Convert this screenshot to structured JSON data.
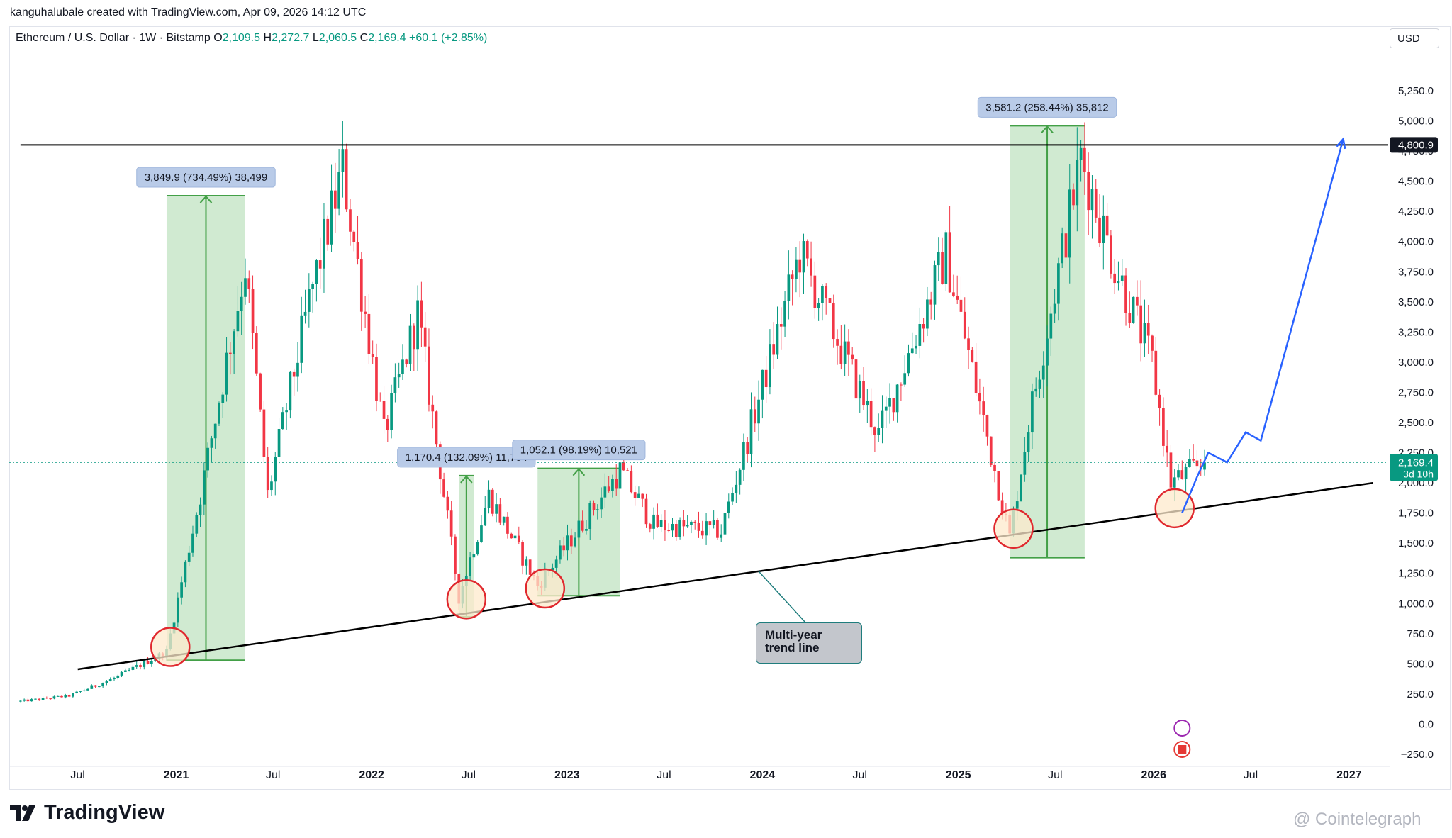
{
  "header": {
    "created_by": "kanguhalubale created with TradingView.com, Apr 09, 2026 14:12 UTC"
  },
  "legend": {
    "symbol": "Ethereum / U.S. Dollar · 1W · Bitstamp",
    "open_label": "O",
    "open": "2,109.5",
    "high_label": "H",
    "high": "2,272.7",
    "low_label": "L",
    "low": "2,060.5",
    "close_label": "C",
    "close": "2,169.4",
    "change": "+60.1 (+2.85%)"
  },
  "currency": "USD",
  "brand": "TradingView",
  "watermark": "@ Cointelegraph",
  "colors": {
    "up": "#089981",
    "down": "#f23645",
    "measure_fill": "#c8e6c9",
    "measure_line": "#43a047",
    "projection": "#2962ff",
    "trend": "#000000"
  },
  "chart_data": {
    "type": "candlestick",
    "title": "Ethereum / U.S. Dollar · 1W · Bitstamp",
    "ylim": [
      -300,
      5450
    ],
    "y_ticks": [
      "5,250.0",
      "5,000.0",
      "4,750.0",
      "4,500.0",
      "4,250.0",
      "4,000.0",
      "3,750.0",
      "3,500.0",
      "3,250.0",
      "3,000.0",
      "2,750.0",
      "2,500.0",
      "2,250.0",
      "2,000.0",
      "1,750.0",
      "1,500.0",
      "1,250.0",
      "1,000.0",
      "750.0",
      "500.0",
      "250.0",
      "0.0",
      "−250.0"
    ],
    "y_tick_values": [
      5250,
      5000,
      4750,
      4500,
      4250,
      4000,
      3750,
      3500,
      3250,
      3000,
      2750,
      2500,
      2250,
      2000,
      1750,
      1500,
      1250,
      1000,
      750,
      500,
      250,
      0,
      -250
    ],
    "x_ticks": [
      "Jul",
      "2021",
      "Jul",
      "2022",
      "Jul",
      "2023",
      "Jul",
      "2024",
      "Jul",
      "2025",
      "Jul",
      "2026",
      "Jul",
      "2027"
    ],
    "x_tick_dates": [
      "2020-07-01",
      "2021-01-01",
      "2021-07-01",
      "2022-01-01",
      "2022-07-01",
      "2023-01-01",
      "2023-07-01",
      "2024-01-01",
      "2024-07-01",
      "2025-01-01",
      "2025-07-01",
      "2026-01-01",
      "2026-07-01",
      "2027-01-01"
    ],
    "anchors": [
      [
        "2020-03-16",
        190
      ],
      [
        "2020-06-15",
        235
      ],
      [
        "2020-09-07",
        380
      ],
      [
        "2020-12-14",
        600
      ],
      [
        "2021-02-15",
        1900
      ],
      [
        "2021-05-10",
        3800
      ],
      [
        "2021-06-21",
        1900
      ],
      [
        "2021-09-06",
        3500
      ],
      [
        "2021-11-08",
        4600
      ],
      [
        "2022-01-24",
        2400
      ],
      [
        "2022-03-28",
        3400
      ],
      [
        "2022-06-13",
        1050
      ],
      [
        "2022-08-08",
        1900
      ],
      [
        "2022-11-07",
        1150
      ],
      [
        "2023-04-10",
        2100
      ],
      [
        "2023-06-12",
        1650
      ],
      [
        "2023-10-16",
        1600
      ],
      [
        "2024-03-11",
        3900
      ],
      [
        "2024-08-05",
        2400
      ],
      [
        "2024-12-09",
        3900
      ],
      [
        "2025-04-07",
        1550
      ],
      [
        "2025-05-12",
        2500
      ],
      [
        "2025-08-18",
        4700
      ],
      [
        "2025-10-13",
        3900
      ],
      [
        "2025-12-29",
        3000
      ],
      [
        "2026-02-02",
        2000
      ],
      [
        "2026-04-06",
        2169.4
      ]
    ],
    "last_close": 2169.4,
    "resistance": {
      "value": 4800.9,
      "label": "4,800.9"
    },
    "price_label": {
      "value": "2,169.4",
      "countdown": "3d 10h"
    },
    "trend_line": {
      "points": [
        [
          "2020-07-01",
          455
        ],
        [
          "2027-02-15",
          2000
        ]
      ],
      "label": "Multi-year trend line"
    },
    "measurements": [
      {
        "label": "3,849.9 (734.49%) 38,499",
        "from": [
          "2020-12-14",
          530
        ],
        "to": [
          "2021-05-10",
          4380
        ],
        "date_start": "2020-12-14",
        "date_end": "2021-05-10",
        "low": 530,
        "high": 4380
      },
      {
        "label": "1,170.4 (132.09%) 11,704",
        "from": [
          "2022-06-20",
          890
        ],
        "to": [
          "2022-07-11",
          2060
        ],
        "date_start": "2022-06-13",
        "date_end": "2022-07-11",
        "low": 890,
        "high": 2060
      },
      {
        "label": "1,052.1 (98.19%) 10,521",
        "from": [
          "2022-11-07",
          1065
        ],
        "to": [
          "2023-04-10",
          2120
        ],
        "date_start": "2022-11-07",
        "date_end": "2023-04-10",
        "low": 1065,
        "high": 2120
      },
      {
        "label": "3,581.2 (258.44%) 35,812",
        "from": [
          "2025-04-07",
          1380
        ],
        "to": [
          "2025-08-25",
          4960
        ],
        "date_start": "2025-04-07",
        "date_end": "2025-08-25",
        "low": 1380,
        "high": 4960
      }
    ],
    "circles": [
      {
        "date": "2020-12-21",
        "value": 640
      },
      {
        "date": "2022-06-27",
        "value": 1035
      },
      {
        "date": "2022-11-21",
        "value": 1125
      },
      {
        "date": "2025-04-14",
        "value": 1620
      },
      {
        "date": "2026-02-09",
        "value": 1790
      }
    ],
    "projection": [
      [
        "2026-02-23",
        1750
      ],
      [
        "2026-03-23",
        2050
      ],
      [
        "2026-04-13",
        2250
      ],
      [
        "2026-05-18",
        2170
      ],
      [
        "2026-06-22",
        2420
      ],
      [
        "2026-07-20",
        2350
      ],
      [
        "2026-12-21",
        4850
      ]
    ]
  }
}
